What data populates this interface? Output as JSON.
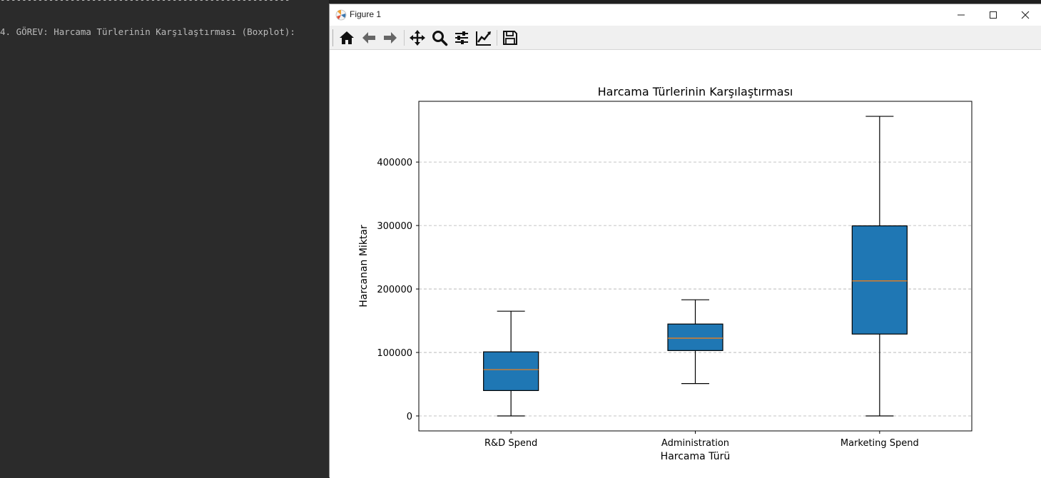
{
  "terminal": {
    "separator": "------------------------------------------------------",
    "line": "4. GÖREV: Harcama Türlerinin Karşılaştırması (Boxplot):"
  },
  "window": {
    "title": "Figure 1"
  },
  "toolbar": {
    "icons": [
      "home-icon",
      "back-arrow-icon",
      "forward-arrow-icon",
      "pan-icon",
      "zoom-icon",
      "configure-subplots-icon",
      "edit-axis-icon",
      "save-icon"
    ]
  },
  "colors": {
    "box_fill": "#1f77b4",
    "median": "#ff7f0e",
    "grid": "#b0b0b0"
  },
  "chart_data": {
    "type": "boxplot",
    "title": "Harcama Türlerinin Karşılaştırması",
    "xlabel": "Harcama Türü",
    "ylabel": "Harcanan Miktar",
    "ylim": [
      -23600,
      495700
    ],
    "yticks": [
      0,
      100000,
      200000,
      300000,
      400000
    ],
    "ytick_labels": [
      "0",
      "100000",
      "200000",
      "300000",
      "400000"
    ],
    "grid": "y-dashed",
    "categories": [
      "R&D Spend",
      "Administration",
      "Marketing Spend"
    ],
    "boxes": [
      {
        "name": "R&D Spend",
        "whisker_low": 0,
        "q1": 40000,
        "median": 73000,
        "q3": 101000,
        "whisker_high": 165000
      },
      {
        "name": "Administration",
        "whisker_low": 51000,
        "q1": 103000,
        "median": 122500,
        "q3": 144800,
        "whisker_high": 183000
      },
      {
        "name": "Marketing Spend",
        "whisker_low": 0,
        "q1": 129000,
        "median": 212700,
        "q3": 299500,
        "whisker_high": 472000
      }
    ]
  }
}
